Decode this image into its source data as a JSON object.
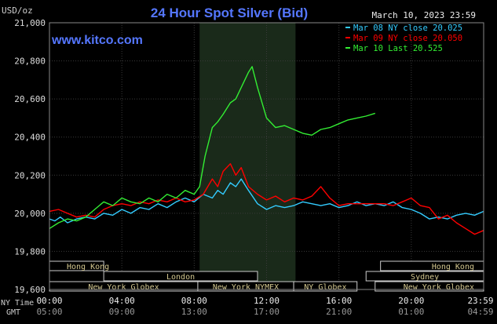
{
  "chart_data": {
    "type": "line",
    "title": "24 Hour Spot Silver (Bid)",
    "website": "www.kitco.com",
    "timestamp": "March 10, 2023 23:59",
    "y_unit": "USD/oz",
    "ylim": [
      19.6,
      21.0
    ],
    "y_ticks": [
      "21,000",
      "20,800",
      "20,600",
      "20,400",
      "20,200",
      "20,000",
      "19,800",
      "19,600"
    ],
    "x_ticks_ny": [
      "00:00",
      "04:00",
      "08:00",
      "12:00",
      "16:00",
      "20:00",
      "23:59"
    ],
    "x_ticks_gmt": [
      "05:00",
      "09:00",
      "13:00",
      "17:00",
      "21:00",
      "01:00",
      "04:59"
    ],
    "x_axis_ny_label": "NY Time",
    "x_axis_gmt_label": "GMT",
    "highlight_hours": [
      8.3,
      13.6
    ],
    "grid": true,
    "legend_placement": "top-right",
    "series": [
      {
        "name": "Mar 08 NY close 20.025",
        "color": "#33ccff",
        "points": [
          [
            0,
            19.97
          ],
          [
            0.3,
            19.96
          ],
          [
            0.6,
            19.98
          ],
          [
            1,
            19.95
          ],
          [
            1.5,
            19.97
          ],
          [
            2,
            19.98
          ],
          [
            2.5,
            19.97
          ],
          [
            3,
            20.0
          ],
          [
            3.5,
            19.99
          ],
          [
            4,
            20.02
          ],
          [
            4.5,
            20.0
          ],
          [
            5,
            20.03
          ],
          [
            5.5,
            20.02
          ],
          [
            6,
            20.05
          ],
          [
            6.5,
            20.03
          ],
          [
            7,
            20.06
          ],
          [
            7.5,
            20.08
          ],
          [
            8,
            20.06
          ],
          [
            8.5,
            20.1
          ],
          [
            9,
            20.08
          ],
          [
            9.3,
            20.12
          ],
          [
            9.6,
            20.1
          ],
          [
            10,
            20.16
          ],
          [
            10.3,
            20.14
          ],
          [
            10.6,
            20.18
          ],
          [
            11,
            20.12
          ],
          [
            11.5,
            20.05
          ],
          [
            12,
            20.02
          ],
          [
            12.5,
            20.04
          ],
          [
            13,
            20.03
          ],
          [
            13.5,
            20.04
          ],
          [
            14,
            20.06
          ],
          [
            14.5,
            20.05
          ],
          [
            15,
            20.04
          ],
          [
            15.5,
            20.05
          ],
          [
            16,
            20.03
          ],
          [
            16.5,
            20.04
          ],
          [
            17,
            20.06
          ],
          [
            17.5,
            20.04
          ],
          [
            18,
            20.05
          ],
          [
            18.5,
            20.04
          ],
          [
            19,
            20.06
          ],
          [
            19.5,
            20.03
          ],
          [
            20,
            20.02
          ],
          [
            20.5,
            20.0
          ],
          [
            21,
            19.97
          ],
          [
            21.5,
            19.98
          ],
          [
            22,
            19.97
          ],
          [
            22.5,
            19.99
          ],
          [
            23,
            20.0
          ],
          [
            23.5,
            19.99
          ],
          [
            24,
            20.01
          ]
        ]
      },
      {
        "name": "Mar 09 NY close 20.050",
        "color": "#ff0000",
        "points": [
          [
            0,
            20.01
          ],
          [
            0.5,
            20.02
          ],
          [
            1,
            20.0
          ],
          [
            1.5,
            19.98
          ],
          [
            2,
            19.99
          ],
          [
            2.5,
            19.98
          ],
          [
            3,
            20.02
          ],
          [
            3.5,
            20.04
          ],
          [
            4,
            20.05
          ],
          [
            4.5,
            20.04
          ],
          [
            5,
            20.06
          ],
          [
            5.5,
            20.05
          ],
          [
            6,
            20.07
          ],
          [
            6.5,
            20.06
          ],
          [
            7,
            20.08
          ],
          [
            7.5,
            20.06
          ],
          [
            8,
            20.07
          ],
          [
            8.5,
            20.1
          ],
          [
            9,
            20.18
          ],
          [
            9.3,
            20.14
          ],
          [
            9.6,
            20.22
          ],
          [
            10,
            20.26
          ],
          [
            10.3,
            20.2
          ],
          [
            10.6,
            20.24
          ],
          [
            11,
            20.14
          ],
          [
            11.5,
            20.1
          ],
          [
            12,
            20.07
          ],
          [
            12.5,
            20.09
          ],
          [
            13,
            20.06
          ],
          [
            13.5,
            20.08
          ],
          [
            14,
            20.07
          ],
          [
            14.5,
            20.09
          ],
          [
            15,
            20.14
          ],
          [
            15.5,
            20.08
          ],
          [
            16,
            20.04
          ],
          [
            16.5,
            20.05
          ],
          [
            17,
            20.05
          ],
          [
            17.5,
            20.05
          ],
          [
            18,
            20.05
          ],
          [
            18.5,
            20.05
          ],
          [
            19,
            20.04
          ],
          [
            19.5,
            20.06
          ],
          [
            20,
            20.08
          ],
          [
            20.5,
            20.04
          ],
          [
            21,
            20.03
          ],
          [
            21.5,
            19.97
          ],
          [
            22,
            19.99
          ],
          [
            22.5,
            19.95
          ],
          [
            23,
            19.92
          ],
          [
            23.5,
            19.89
          ],
          [
            24,
            19.91
          ]
        ]
      },
      {
        "name": "Mar 10 Last 20.525",
        "color": "#33ee33",
        "points": [
          [
            0,
            19.92
          ],
          [
            0.5,
            19.95
          ],
          [
            1,
            19.97
          ],
          [
            1.5,
            19.96
          ],
          [
            2,
            19.98
          ],
          [
            2.5,
            20.02
          ],
          [
            3,
            20.06
          ],
          [
            3.5,
            20.04
          ],
          [
            4,
            20.08
          ],
          [
            4.5,
            20.06
          ],
          [
            5,
            20.05
          ],
          [
            5.5,
            20.08
          ],
          [
            6,
            20.06
          ],
          [
            6.5,
            20.1
          ],
          [
            7,
            20.08
          ],
          [
            7.5,
            20.12
          ],
          [
            8,
            20.1
          ],
          [
            8.3,
            20.14
          ],
          [
            8.6,
            20.3
          ],
          [
            9,
            20.45
          ],
          [
            9.3,
            20.48
          ],
          [
            9.6,
            20.52
          ],
          [
            10,
            20.58
          ],
          [
            10.3,
            20.6
          ],
          [
            10.6,
            20.66
          ],
          [
            11,
            20.74
          ],
          [
            11.2,
            20.77
          ],
          [
            11.5,
            20.66
          ],
          [
            12,
            20.5
          ],
          [
            12.5,
            20.45
          ],
          [
            13,
            20.46
          ],
          [
            13.5,
            20.44
          ],
          [
            14,
            20.42
          ],
          [
            14.5,
            20.41
          ],
          [
            15,
            20.44
          ],
          [
            15.5,
            20.45
          ],
          [
            16,
            20.47
          ],
          [
            16.5,
            20.49
          ],
          [
            17,
            20.5
          ],
          [
            17.5,
            20.51
          ],
          [
            18,
            20.525
          ]
        ]
      }
    ],
    "markets": [
      {
        "name": "Hong Kong",
        "row": 0,
        "start": -0.3,
        "end": 3.0,
        "label_pos": "left"
      },
      {
        "name": "Hong Kong",
        "row": 0,
        "start": 18.3,
        "end": 24.0,
        "label_pos": "right"
      },
      {
        "name": "London",
        "row": 1,
        "start": 3.0,
        "end": 11.5,
        "label_pos": "center"
      },
      {
        "name": "Sydney",
        "row": 1,
        "start": 17.5,
        "end": 24.0,
        "label_pos": "center"
      },
      {
        "name": "New York Globex",
        "row": 2,
        "start": 0.0,
        "end": 8.2,
        "label_pos": "center"
      },
      {
        "name": "New York NYMEX",
        "row": 2,
        "start": 8.2,
        "end": 13.5,
        "label_pos": "center"
      },
      {
        "name": "NY Globex",
        "row": 2,
        "start": 13.5,
        "end": 17.0,
        "label_pos": "center"
      },
      {
        "name": "New York Globex",
        "row": 2,
        "start": 18.0,
        "end": 24.0,
        "label_pos": "right"
      }
    ]
  }
}
